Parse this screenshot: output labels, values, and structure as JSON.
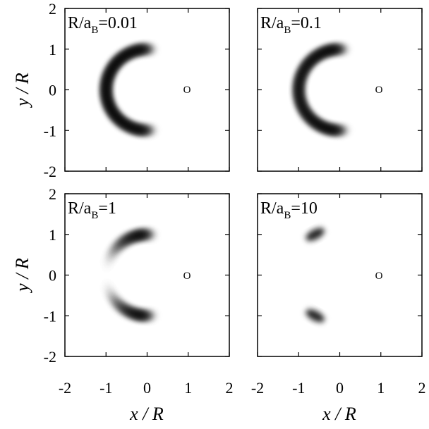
{
  "chart_data": [
    {
      "type": "heatmap",
      "title": "R/a_B=0.01",
      "title_parts": {
        "pre": "R/a",
        "sub": "B",
        "post": "=0.01"
      },
      "xlabel": "",
      "ylabel": "y / R",
      "xlim": [
        -2,
        2
      ],
      "ylim": [
        -2,
        2
      ],
      "xticks": [],
      "yticks": [
        "2",
        "1",
        "0",
        "-1",
        "-2"
      ],
      "marker": {
        "label": "O",
        "x": 1,
        "y": 0
      },
      "density": {
        "shape": "crescent",
        "radius": 1.0,
        "width": 0.13,
        "angle_start_deg": 80,
        "angle_end_deg": 280,
        "center_x": 0.0,
        "center_y": 0.0,
        "modulation": 0.0
      }
    },
    {
      "type": "heatmap",
      "title": "R/a_B=0.1",
      "title_parts": {
        "pre": "R/a",
        "sub": "B",
        "post": "=0.1"
      },
      "xlabel": "",
      "ylabel": "",
      "xlim": [
        -2,
        2
      ],
      "ylim": [
        -2,
        2
      ],
      "xticks": [],
      "yticks": [],
      "marker": {
        "label": "O",
        "x": 1,
        "y": 0
      },
      "density": {
        "shape": "crescent",
        "radius": 1.0,
        "width": 0.13,
        "angle_start_deg": 80,
        "angle_end_deg": 280,
        "center_x": 0.0,
        "center_y": 0.0,
        "modulation": 0.15
      }
    },
    {
      "type": "heatmap",
      "title": "R/a_B=1",
      "title_parts": {
        "pre": "R/a",
        "sub": "B",
        "post": "=1"
      },
      "xlabel": "x / R",
      "ylabel": "y / R",
      "xlim": [
        -2,
        2
      ],
      "ylim": [
        -2,
        2
      ],
      "xticks": [
        "-2",
        "-1",
        "0",
        "1",
        "2"
      ],
      "yticks": [
        "2",
        "1",
        "0",
        "-1",
        "-2"
      ],
      "marker": {
        "label": "O",
        "x": 1,
        "y": 0
      },
      "density": {
        "shape": "crescent",
        "radius": 1.0,
        "width": 0.13,
        "angle_start_deg": 80,
        "angle_end_deg": 280,
        "center_x": 0.0,
        "center_y": 0.0,
        "modulation": 1.0
      }
    },
    {
      "type": "heatmap",
      "title": "R/a_B=10",
      "title_parts": {
        "pre": "R/a",
        "sub": "B",
        "post": "=10"
      },
      "xlabel": "x / R",
      "ylabel": "",
      "xlim": [
        -2,
        2
      ],
      "ylim": [
        -2,
        2
      ],
      "xticks": [
        "-2",
        "-1",
        "0",
        "1",
        "2"
      ],
      "yticks": [],
      "marker": {
        "label": "O",
        "x": 1,
        "y": 0
      },
      "density": {
        "shape": "blobs",
        "blobs": [
          {
            "x": -0.6,
            "y": 1.0,
            "sx": 0.25,
            "sy": 0.12
          },
          {
            "x": -0.6,
            "y": -1.0,
            "sx": 0.25,
            "sy": 0.12
          }
        ]
      }
    }
  ]
}
